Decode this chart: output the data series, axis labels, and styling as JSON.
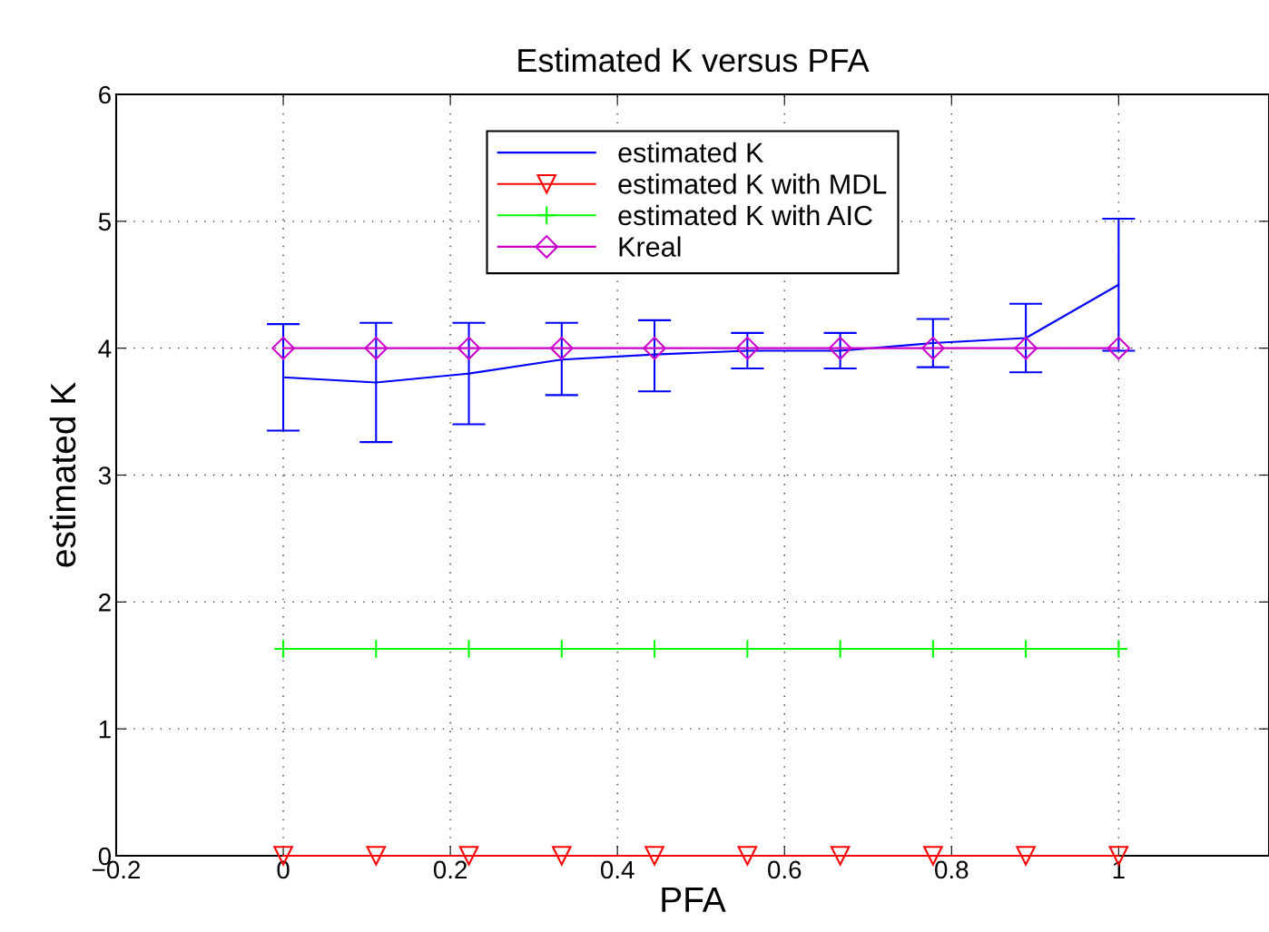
{
  "chart_data": {
    "type": "line",
    "title": "Estimated K versus PFA",
    "xlabel": "PFA",
    "ylabel": "estimated K",
    "x": [
      0,
      0.1111,
      0.2222,
      0.3333,
      0.4444,
      0.5556,
      0.6667,
      0.7778,
      0.8889,
      1
    ],
    "xlim": [
      -0.2,
      1.18
    ],
    "xticks": [
      {
        "value": -0.2,
        "label": "−0.2"
      },
      0,
      0.2,
      0.4,
      0.6,
      0.8,
      1
    ],
    "ylim": [
      0,
      6
    ],
    "yticks": [
      0,
      1,
      2,
      3,
      4,
      5,
      6
    ],
    "grid": true,
    "legend": "top",
    "series": [
      {
        "name": "estimated K",
        "color": "#0000ff",
        "marker": "none",
        "values": [
          3.77,
          3.73,
          3.8,
          3.91,
          3.95,
          3.98,
          3.98,
          4.04,
          4.08,
          4.5
        ],
        "errors": [
          [
            3.35,
            4.19
          ],
          [
            3.26,
            4.2
          ],
          [
            3.4,
            4.2
          ],
          [
            3.63,
            4.2
          ],
          [
            3.66,
            4.22
          ],
          [
            3.84,
            4.12
          ],
          [
            3.84,
            4.12
          ],
          [
            3.85,
            4.23
          ],
          [
            3.81,
            4.35
          ],
          [
            3.98,
            5.02
          ]
        ]
      },
      {
        "name": "estimated K with MDL",
        "color": "#ff0000",
        "marker": "triangle",
        "values": [
          0,
          0,
          0,
          0,
          0,
          0,
          0,
          0,
          0,
          0
        ]
      },
      {
        "name": "estimated K with AIC",
        "color": "#00ff00",
        "marker": "cross",
        "values": [
          1.63,
          1.63,
          1.63,
          1.63,
          1.63,
          1.63,
          1.63,
          1.63,
          1.63,
          1.63
        ]
      },
      {
        "name": "Kreal",
        "color": "#cc00cc",
        "marker": "diamond",
        "values": [
          4,
          4,
          4,
          4,
          4,
          4,
          4,
          4,
          4,
          4
        ]
      }
    ]
  }
}
